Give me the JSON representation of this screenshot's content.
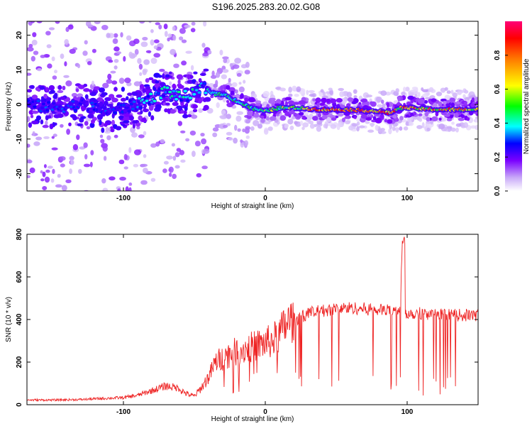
{
  "title": "S196.2025.283.20.02.G08",
  "colors": {
    "snr_line": "#ee2222",
    "frame": "#000000",
    "background": "#ffffff"
  },
  "chart_data": [
    {
      "type": "heatmap",
      "xlabel": "Height of straight line (km)",
      "ylabel": "Frequency (Hz)",
      "xlim": [
        -168,
        150
      ],
      "ylim": [
        -25,
        24
      ],
      "xticks": [
        -100,
        0,
        100
      ],
      "yticks": [
        -20,
        -10,
        0,
        10,
        20
      ],
      "ridge": {
        "x": [
          -168,
          -150,
          -130,
          -110,
          -100,
          -90,
          -80,
          -70,
          -60,
          -50,
          -45,
          -40,
          -35,
          -30,
          -20,
          -10,
          0,
          10,
          20,
          40,
          60,
          80,
          88,
          95,
          100,
          120,
          150
        ],
        "freq": [
          0,
          -1,
          0,
          -2,
          -1,
          0,
          2,
          4,
          2,
          3,
          5,
          4,
          3,
          3,
          1,
          -1,
          -2,
          -1,
          -1,
          -1.5,
          -1.5,
          -2,
          -2.5,
          -1,
          -1,
          -1.5,
          -1.5
        ]
      },
      "colorbar": {
        "label": "Normalized spectral amplitude",
        "range": [
          0,
          1
        ],
        "ticks": [
          "0.0",
          "0.2",
          "0.4",
          "0.6",
          "0.8"
        ]
      }
    },
    {
      "type": "line",
      "xlabel": "Height of straight line (km)",
      "ylabel": "SNR (10 * v/v)",
      "xlim": [
        -168,
        150
      ],
      "ylim": [
        0,
        800
      ],
      "xticks": [
        -100,
        0,
        100
      ],
      "yticks": [
        0,
        200,
        400,
        600,
        800
      ],
      "series": [
        {
          "x": [
            -168,
            -150,
            -130,
            -110,
            -100,
            -90,
            -80,
            -70,
            -60,
            -55,
            -50,
            -45,
            -40,
            -35,
            -30,
            -25,
            -20,
            -15,
            -10,
            -5,
            0,
            5,
            10,
            15,
            20,
            25,
            30,
            40,
            50,
            60,
            70,
            80,
            90,
            95,
            97,
            98,
            100,
            110,
            120,
            130,
            140,
            150
          ],
          "values": [
            20,
            20,
            22,
            28,
            30,
            40,
            60,
            80,
            70,
            50,
            40,
            80,
            130,
            200,
            220,
            240,
            250,
            260,
            270,
            280,
            290,
            300,
            330,
            380,
            400,
            410,
            430,
            440,
            450,
            455,
            450,
            445,
            440,
            450,
            800,
            440,
            430,
            430,
            420,
            420,
            420,
            420
          ]
        }
      ]
    }
  ]
}
